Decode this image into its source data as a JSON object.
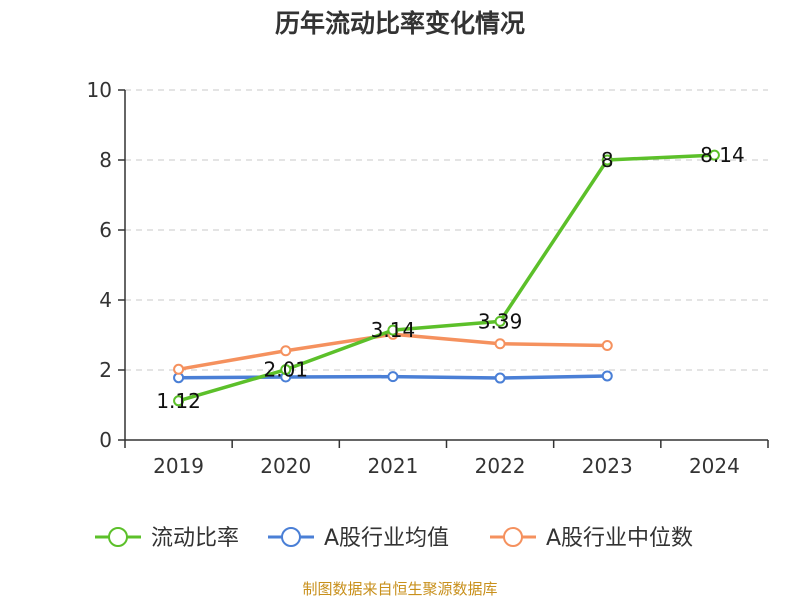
{
  "chart_data": {
    "type": "line",
    "title": "历年流动比率变化情况",
    "categories": [
      "2019",
      "2020",
      "2021",
      "2022",
      "2023",
      "2024"
    ],
    "ylim": [
      0,
      10
    ],
    "yticks": [
      0,
      2,
      4,
      6,
      8,
      10
    ],
    "grid": true,
    "legend_position": "bottom",
    "series": [
      {
        "name": "流动比率",
        "color": "#5cc02a",
        "values": [
          1.12,
          2.01,
          3.14,
          3.39,
          8,
          8.14
        ],
        "labels": [
          "1.12",
          "2.01",
          "3.14",
          "3.39",
          "8",
          "8.14"
        ]
      },
      {
        "name": "A股行业均值",
        "color": "#4a7fd6",
        "values": [
          1.78,
          1.8,
          1.81,
          1.77,
          1.83,
          null
        ]
      },
      {
        "name": "A股行业中位数",
        "color": "#f5915e",
        "values": [
          2.02,
          2.55,
          3.02,
          2.75,
          2.7,
          null
        ]
      }
    ]
  },
  "source": "制图数据来自恒生聚源数据库"
}
